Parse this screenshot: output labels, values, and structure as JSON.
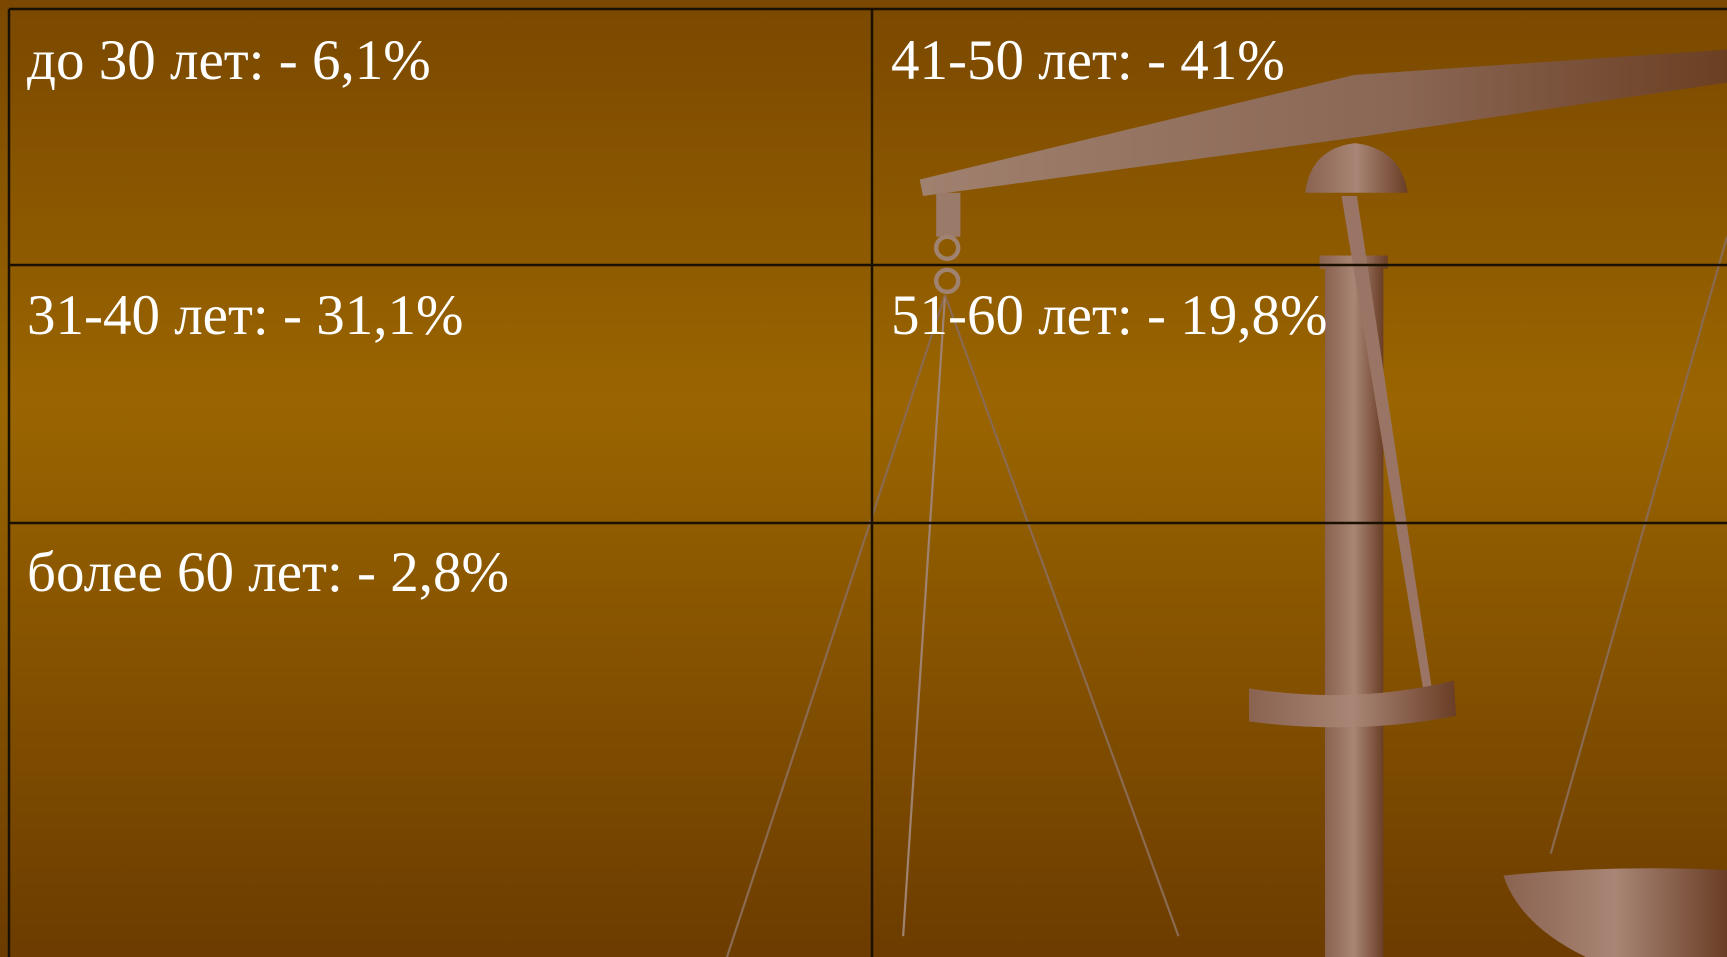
{
  "table": {
    "rows": [
      [
        "до 30 лет: - 6,1%",
        "41-50 лет: - 41%"
      ],
      [
        "31-40 лет: - 31,1%",
        "51-60 лет: - 19,8%"
      ],
      [
        "более 60 лет: - 2,8%"
      ]
    ]
  }
}
